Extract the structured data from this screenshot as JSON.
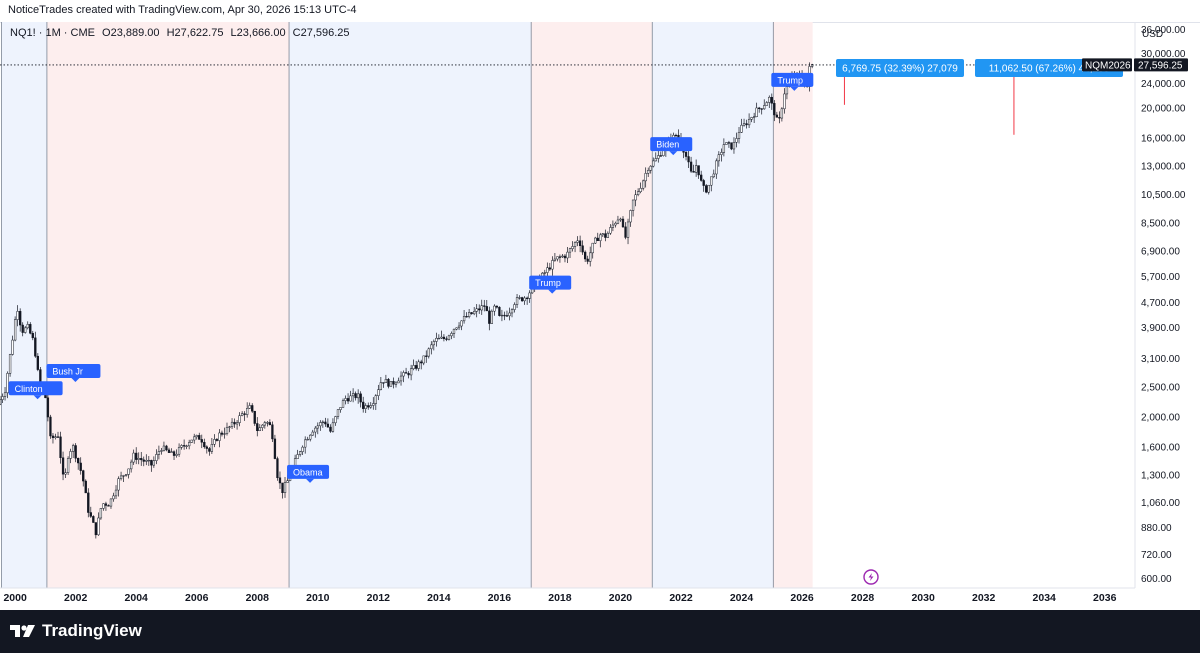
{
  "header": {
    "attribution": "NoticeTrades created with TradingView.com, Apr 30, 2026 15:13 UTC-4"
  },
  "legend": {
    "symbol": "NQ1! · 1M · CME",
    "open": "O23,889.00",
    "high": "H27,622.75",
    "low": "L23,666.00",
    "close": "C27,596.25"
  },
  "footer": {
    "brand": "TradingView"
  },
  "colors": {
    "blue_band": "#eef3fd",
    "red_band": "#fdeeee",
    "label_blue": "#2962ff",
    "measure_blue": "#2196f3",
    "arrow_red": "#f23645",
    "candle": "#131722",
    "price_tag": "#131722"
  },
  "chart_data": {
    "type": "candlestick",
    "symbol": "NQ1!",
    "interval": "1M",
    "exchange": "CME",
    "currency": "USD",
    "y_scale": "log",
    "ylim": [
      560,
      38000
    ],
    "xlim": [
      1999.5,
      2037.0
    ],
    "x_ticks": [
      "2000",
      "2002",
      "2004",
      "2006",
      "2008",
      "2010",
      "2012",
      "2014",
      "2016",
      "2018",
      "2020",
      "2022",
      "2024",
      "2026",
      "2028",
      "2030",
      "2032",
      "2034",
      "2036"
    ],
    "y_ticks": [
      "36,000.00",
      "30,000.00",
      "24,000.00",
      "20,000.00",
      "16,000.00",
      "13,000.00",
      "10,500.00",
      "8,500.00",
      "6,900.00",
      "5,700.00",
      "4,700.00",
      "3,900.00",
      "3,100.00",
      "2,500.00",
      "2,000.00",
      "1,600.00",
      "1,300.00",
      "1,060.00",
      "880.00",
      "720.00",
      "600.00"
    ],
    "last_price": {
      "label": "NQM2026",
      "value": "27,596.25",
      "price": 27596.25
    },
    "presidential_terms": [
      {
        "name": "Clinton",
        "party": "blue",
        "start": 1999.55,
        "end": 2001.05,
        "label_date": 1999.85,
        "label_price": 2480
      },
      {
        "name": "Bush Jr",
        "party": "red",
        "start": 2001.05,
        "end": 2009.05,
        "label_date": 2001.1,
        "label_price": 2820
      },
      {
        "name": "Obama",
        "party": "blue",
        "start": 2009.05,
        "end": 2017.05,
        "label_date": 2009.05,
        "label_price": 1330
      },
      {
        "name": "Trump",
        "party": "red",
        "start": 2017.05,
        "end": 2021.05,
        "label_date": 2017.05,
        "label_price": 5450
      },
      {
        "name": "Biden",
        "party": "blue",
        "start": 2021.05,
        "end": 2025.05,
        "label_date": 2021.05,
        "label_price": 15300
      },
      {
        "name": "Trump",
        "party": "red",
        "start": 2025.05,
        "end": 2026.35,
        "label_date": 2025.05,
        "label_price": 24700
      }
    ],
    "measurements": [
      {
        "label": "6,769.75 (32.39%) 27,079",
        "arrow_x": 2027.4,
        "from": 20500,
        "to": 27079
      },
      {
        "label": "11,062.50 (67.26%) 44,250",
        "arrow_x": 2033.0,
        "from": 16400,
        "to": 27450
      }
    ],
    "price_path": [
      [
        1999.5,
        2200
      ],
      [
        1999.75,
        2450
      ],
      [
        2000.0,
        3600
      ],
      [
        2000.15,
        4600
      ],
      [
        2000.3,
        3800
      ],
      [
        2000.5,
        3900
      ],
      [
        2000.7,
        3500
      ],
      [
        2000.9,
        2500
      ],
      [
        2001.1,
        2300
      ],
      [
        2001.25,
        1700
      ],
      [
        2001.5,
        1750
      ],
      [
        2001.7,
        1200
      ],
      [
        2001.85,
        1550
      ],
      [
        2002.0,
        1600
      ],
      [
        2002.3,
        1300
      ],
      [
        2002.5,
        1000
      ],
      [
        2002.75,
        850
      ],
      [
        2002.95,
        1050
      ],
      [
        2003.2,
        1050
      ],
      [
        2003.5,
        1250
      ],
      [
        2003.8,
        1350
      ],
      [
        2004.0,
        1500
      ],
      [
        2004.3,
        1450
      ],
      [
        2004.6,
        1400
      ],
      [
        2004.9,
        1600
      ],
      [
        2005.3,
        1500
      ],
      [
        2005.6,
        1600
      ],
      [
        2005.9,
        1700
      ],
      [
        2006.2,
        1720
      ],
      [
        2006.5,
        1550
      ],
      [
        2006.8,
        1750
      ],
      [
        2007.0,
        1800
      ],
      [
        2007.3,
        1900
      ],
      [
        2007.6,
        2050
      ],
      [
        2007.85,
        2150
      ],
      [
        2008.1,
        1800
      ],
      [
        2008.35,
        1950
      ],
      [
        2008.55,
        1850
      ],
      [
        2008.75,
        1300
      ],
      [
        2008.9,
        1150
      ],
      [
        2009.1,
        1250
      ],
      [
        2009.35,
        1450
      ],
      [
        2009.6,
        1650
      ],
      [
        2009.9,
        1820
      ],
      [
        2010.3,
        1950
      ],
      [
        2010.5,
        1800
      ],
      [
        2010.8,
        2150
      ],
      [
        2011.0,
        2300
      ],
      [
        2011.4,
        2350
      ],
      [
        2011.6,
        2150
      ],
      [
        2011.9,
        2250
      ],
      [
        2012.2,
        2650
      ],
      [
        2012.5,
        2550
      ],
      [
        2012.8,
        2700
      ],
      [
        2013.0,
        2750
      ],
      [
        2013.3,
        2900
      ],
      [
        2013.6,
        3100
      ],
      [
        2013.95,
        3550
      ],
      [
        2014.3,
        3600
      ],
      [
        2014.6,
        3900
      ],
      [
        2014.95,
        4200
      ],
      [
        2015.3,
        4400
      ],
      [
        2015.6,
        4600
      ],
      [
        2015.75,
        4100
      ],
      [
        2015.95,
        4600
      ],
      [
        2016.1,
        4150
      ],
      [
        2016.4,
        4400
      ],
      [
        2016.6,
        4750
      ],
      [
        2016.95,
        4900
      ],
      [
        2017.3,
        5400
      ],
      [
        2017.6,
        5900
      ],
      [
        2017.95,
        6500
      ],
      [
        2018.3,
        6700
      ],
      [
        2018.7,
        7600
      ],
      [
        2018.95,
        6300
      ],
      [
        2019.2,
        7300
      ],
      [
        2019.4,
        7800
      ],
      [
        2019.6,
        7700
      ],
      [
        2019.95,
        8700
      ],
      [
        2020.1,
        9000
      ],
      [
        2020.22,
        7400
      ],
      [
        2020.5,
        10000
      ],
      [
        2020.8,
        11500
      ],
      [
        2021.0,
        12900
      ],
      [
        2021.3,
        13800
      ],
      [
        2021.6,
        15300
      ],
      [
        2021.95,
        16500
      ],
      [
        2022.2,
        14500
      ],
      [
        2022.45,
        12000
      ],
      [
        2022.6,
        13200
      ],
      [
        2022.8,
        11000
      ],
      [
        2022.95,
        10900
      ],
      [
        2023.2,
        12800
      ],
      [
        2023.5,
        15300
      ],
      [
        2023.8,
        15000
      ],
      [
        2024.0,
        16900
      ],
      [
        2024.3,
        18200
      ],
      [
        2024.55,
        19500
      ],
      [
        2024.8,
        20500
      ],
      [
        2025.0,
        21500
      ],
      [
        2025.2,
        19000
      ],
      [
        2025.3,
        17500
      ],
      [
        2025.5,
        22500
      ],
      [
        2025.75,
        25000
      ],
      [
        2025.95,
        25500
      ],
      [
        2026.1,
        24500
      ],
      [
        2026.25,
        23500
      ],
      [
        2026.35,
        27596
      ]
    ]
  }
}
